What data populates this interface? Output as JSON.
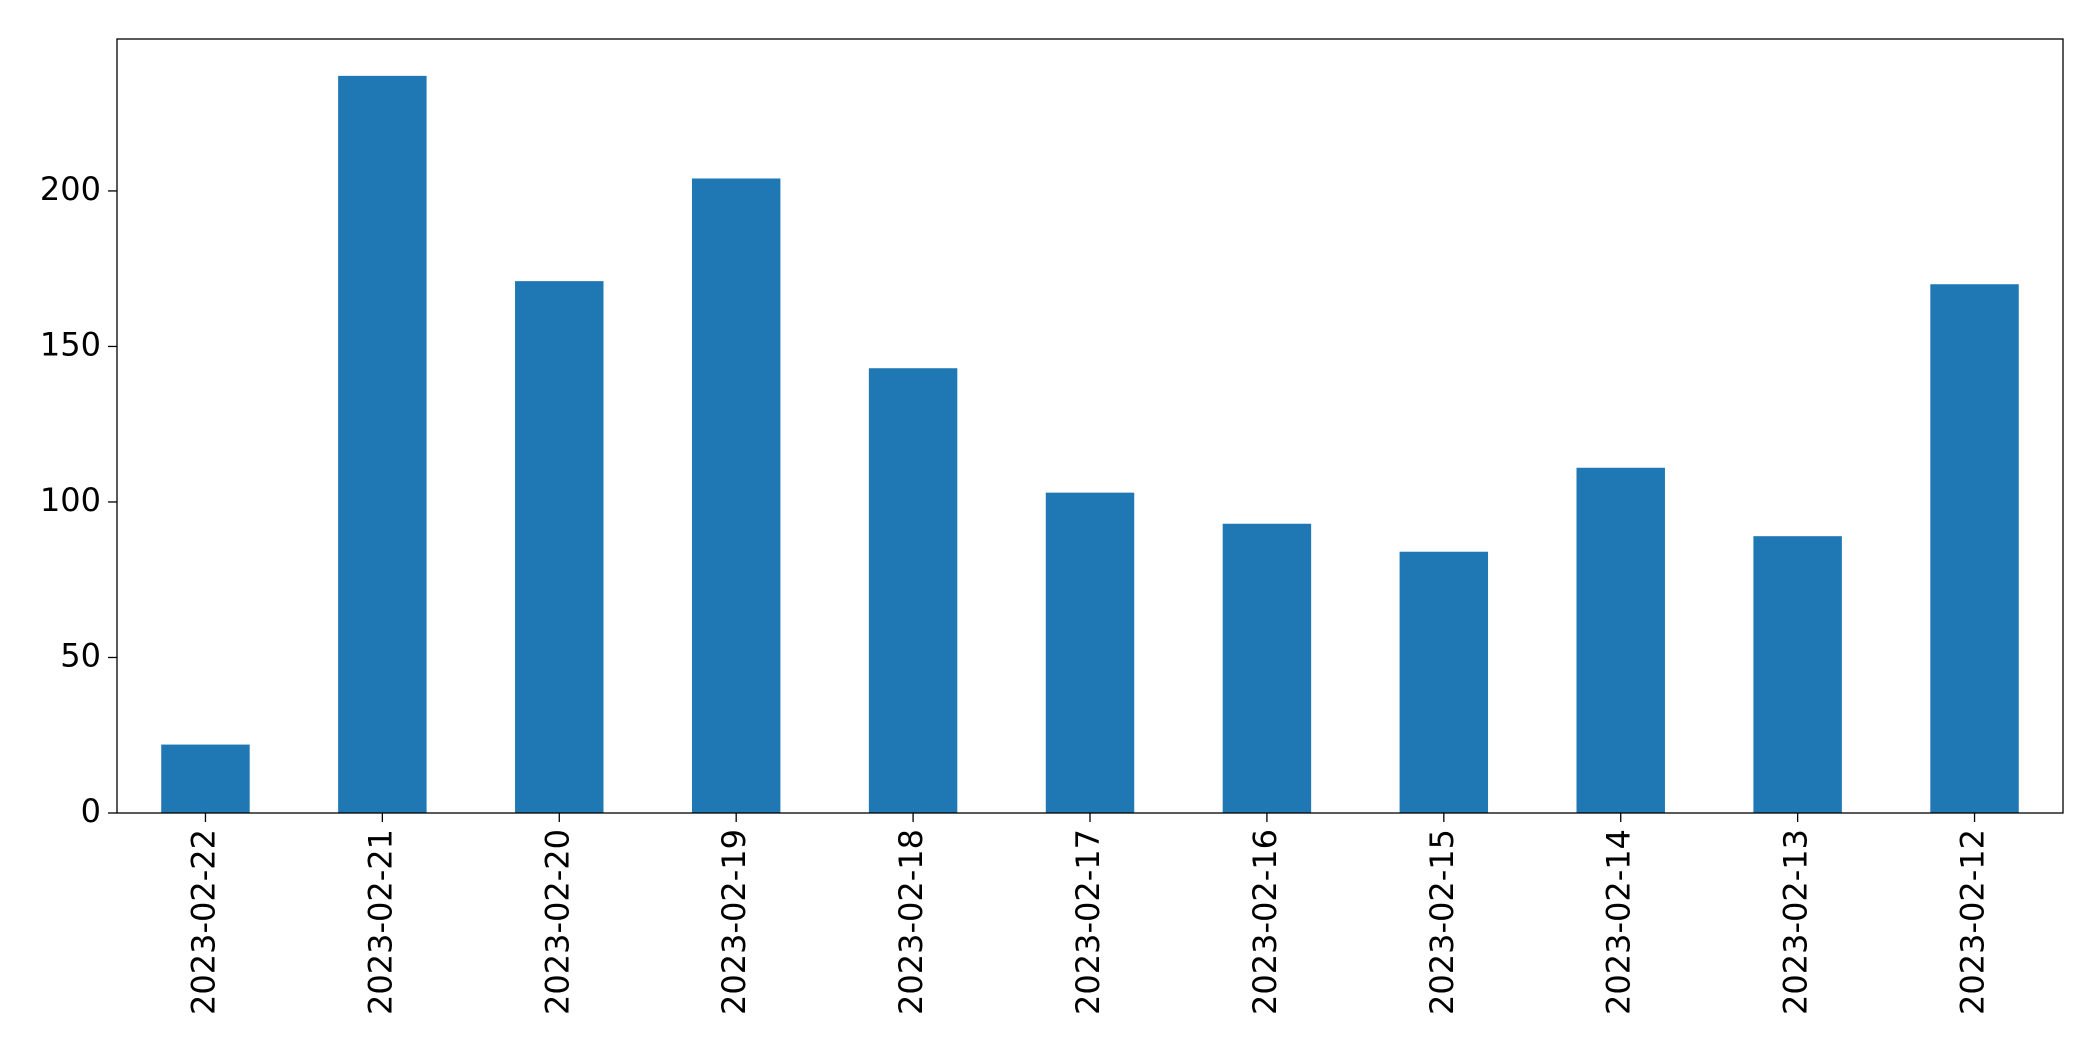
{
  "chart_data": {
    "type": "bar",
    "categories": [
      "2023-02-22",
      "2023-02-21",
      "2023-02-20",
      "2023-02-19",
      "2023-02-18",
      "2023-02-17",
      "2023-02-16",
      "2023-02-15",
      "2023-02-14",
      "2023-02-13",
      "2023-02-12"
    ],
    "values": [
      22,
      237,
      171,
      204,
      143,
      103,
      93,
      84,
      111,
      89,
      170
    ],
    "color": "#1f77b4",
    "ylim": [
      0,
      248.85
    ],
    "yticks": [
      0,
      50,
      100,
      150,
      200
    ],
    "grid": false
  }
}
